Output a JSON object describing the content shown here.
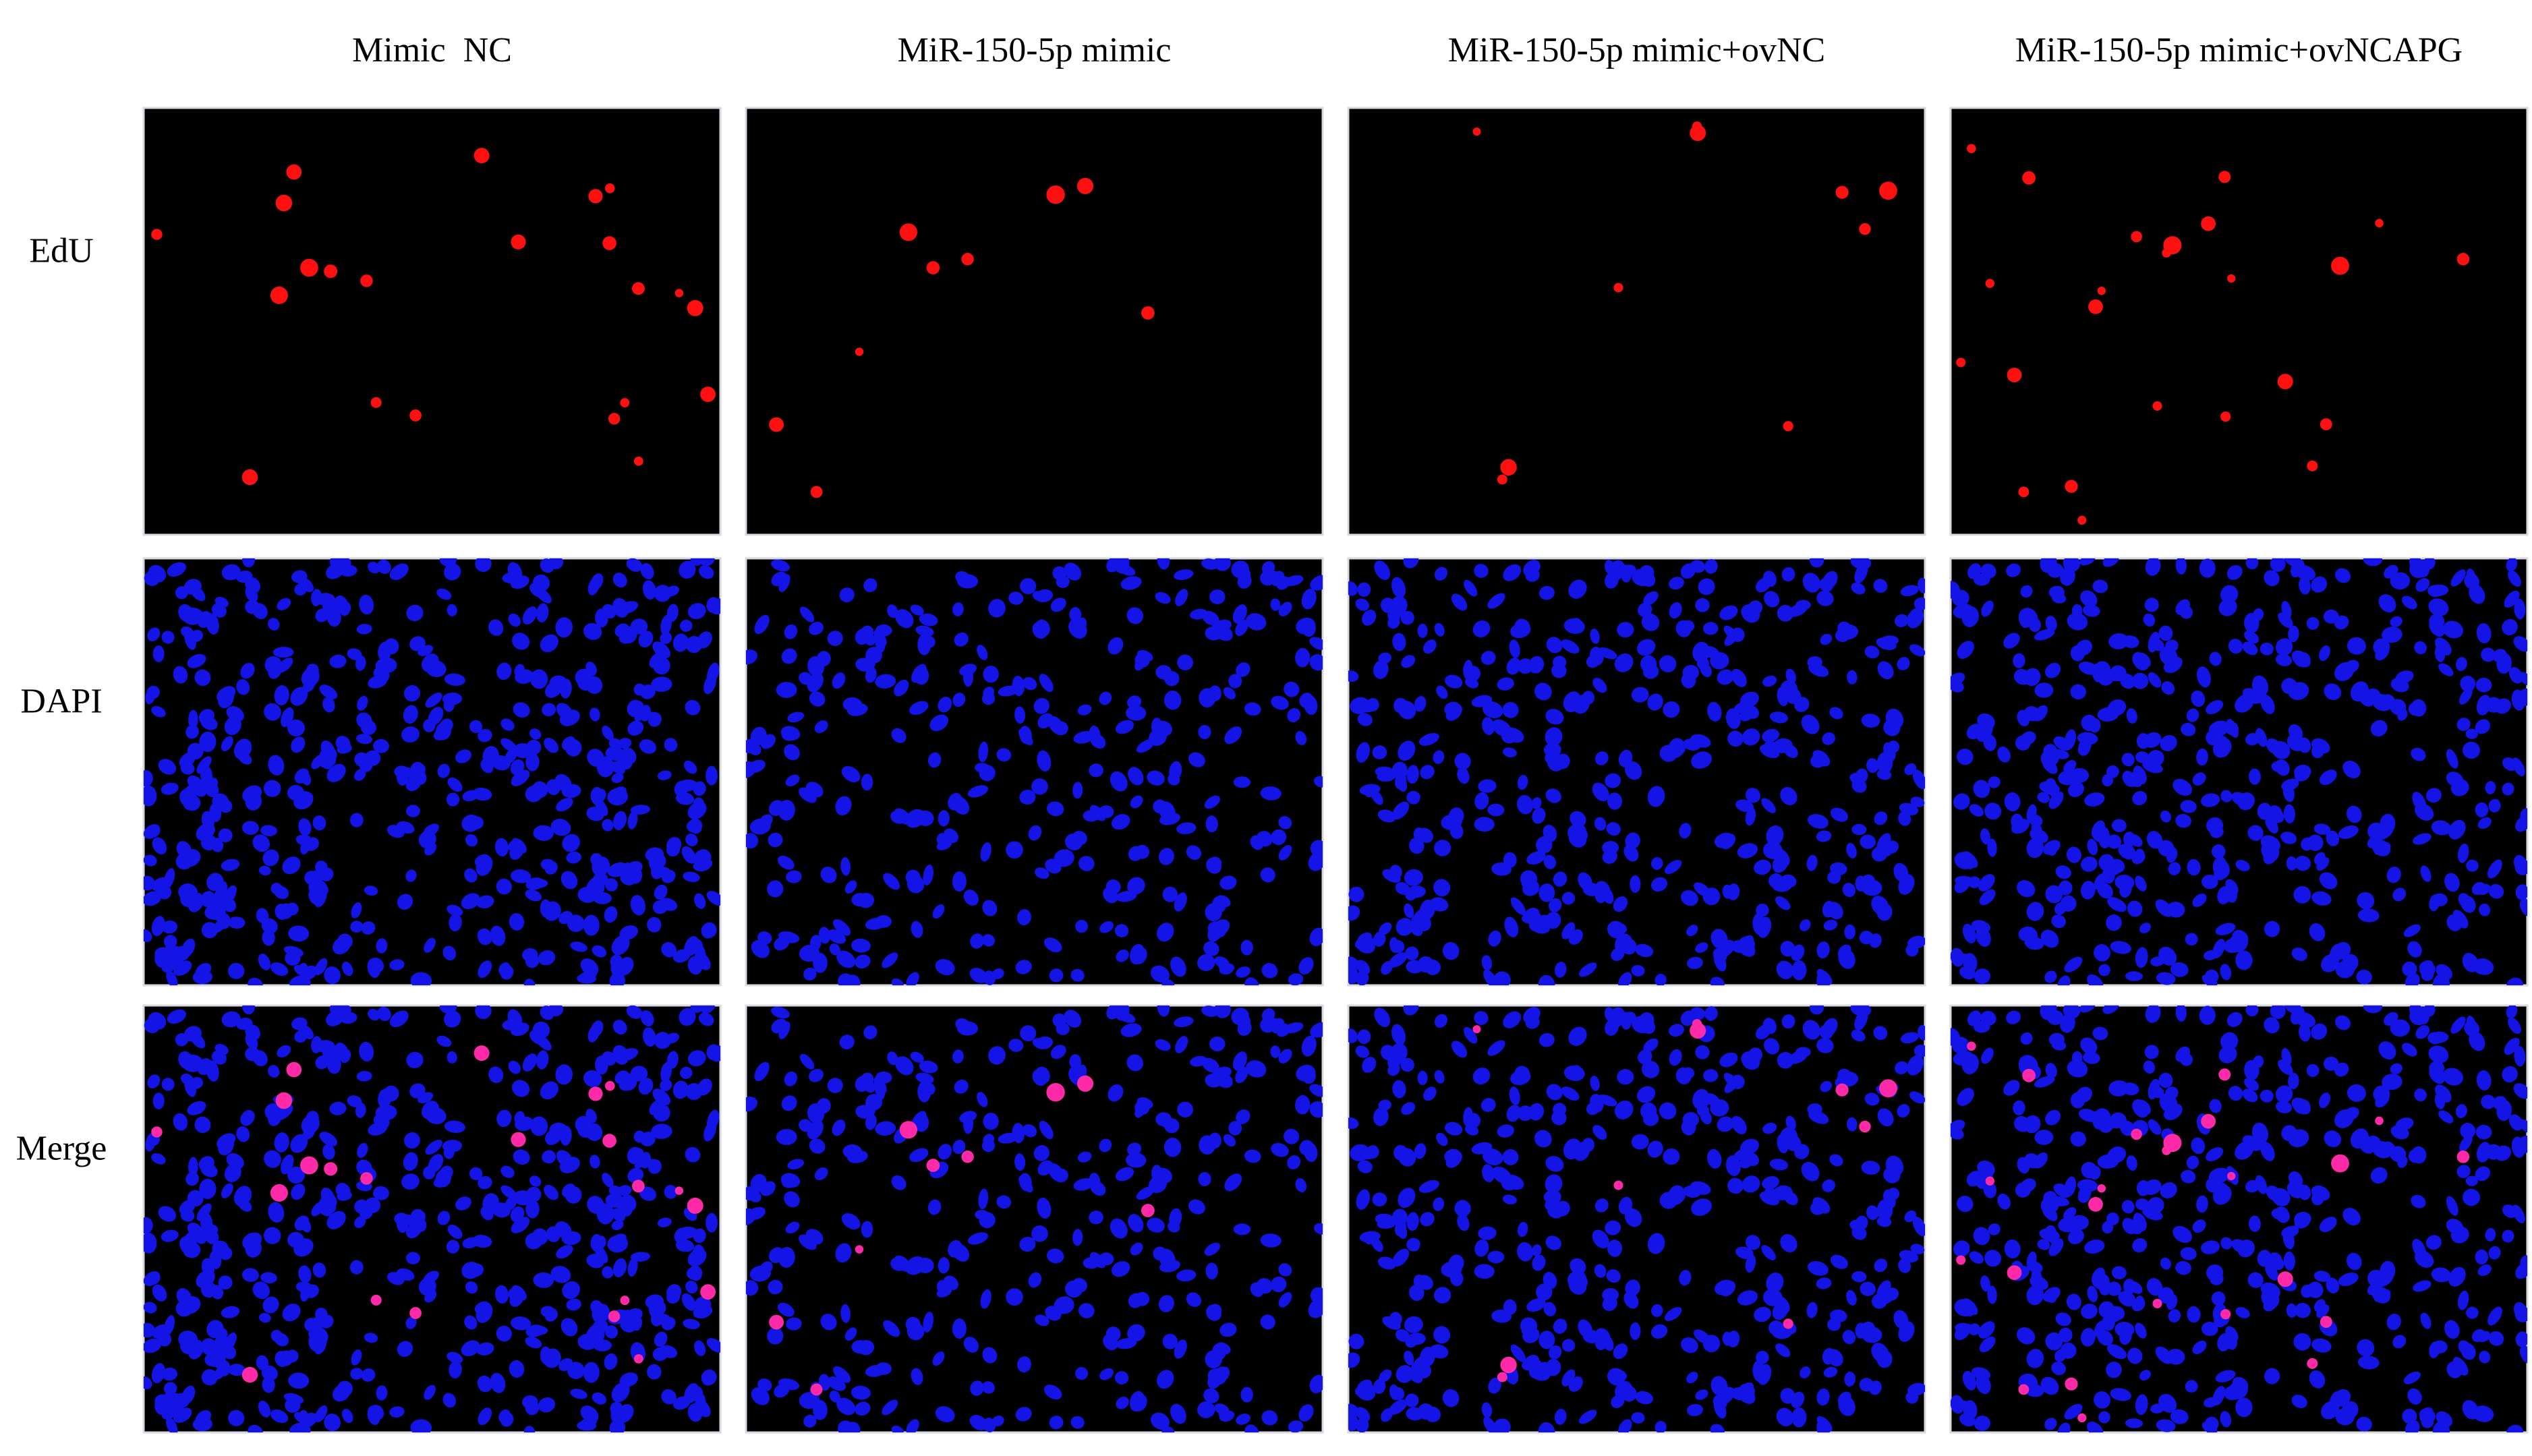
{
  "columns": [
    "Mimic  NC",
    "MiR-150-5p mimic",
    "MiR-150-5p mimic+ovNC",
    "MiR-150-5p mimic+ovNCAPG"
  ],
  "rows": [
    "EdU",
    "DAPI",
    "Merge"
  ]
}
